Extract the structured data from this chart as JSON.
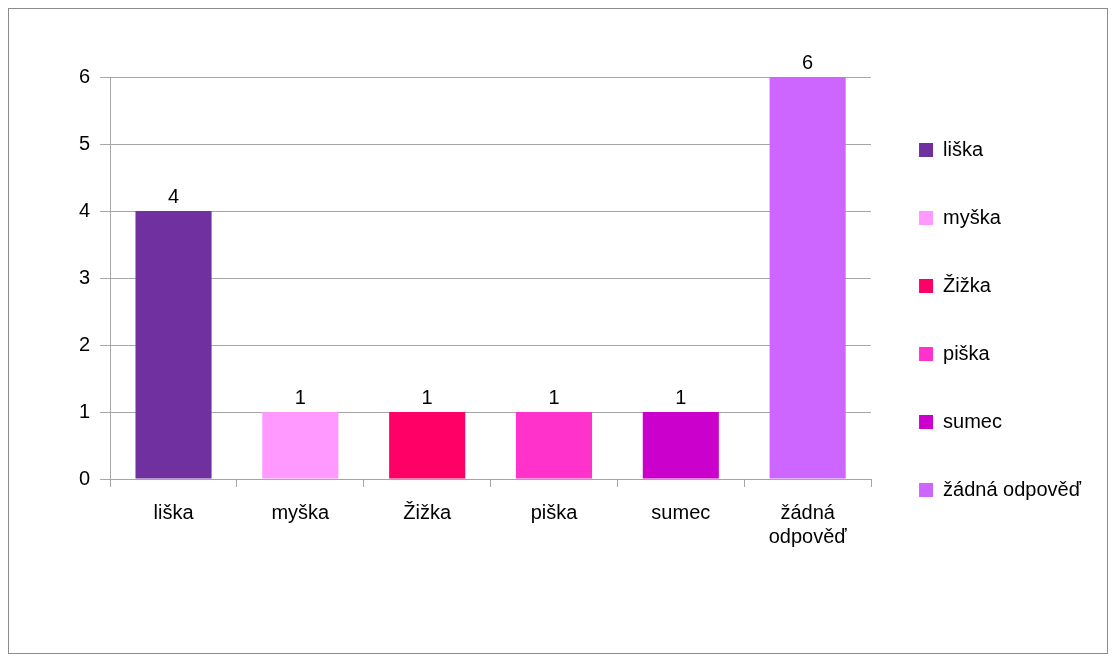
{
  "chart_data": {
    "type": "bar",
    "categories": [
      "liška",
      "myška",
      "Žižka",
      "piška",
      "sumec",
      "žádná odpověď"
    ],
    "series": [
      {
        "name": "liška",
        "color": "#7030a0",
        "values": [
          4,
          null,
          null,
          null,
          null,
          null
        ]
      },
      {
        "name": "myška",
        "color": "#ff99ff",
        "values": [
          null,
          1,
          null,
          null,
          null,
          null
        ]
      },
      {
        "name": "Žižka",
        "color": "#ff0066",
        "values": [
          null,
          null,
          1,
          null,
          null,
          null
        ]
      },
      {
        "name": "piška",
        "color": "#ff33cc",
        "values": [
          null,
          null,
          null,
          1,
          null,
          null
        ]
      },
      {
        "name": "sumec",
        "color": "#cc00cc",
        "values": [
          null,
          null,
          null,
          null,
          1,
          null
        ]
      },
      {
        "name": "žádná odpověď",
        "color": "#cc66ff",
        "values": [
          null,
          null,
          null,
          null,
          null,
          6
        ]
      }
    ],
    "ylim": [
      0,
      6
    ],
    "yticks": [
      0,
      1,
      2,
      3,
      4,
      5,
      6
    ],
    "grid": "y",
    "legend": "right",
    "data_labels": true
  }
}
